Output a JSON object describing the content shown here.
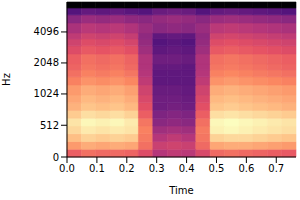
{
  "chart_data": {
    "type": "heatmap",
    "x_label": "Time",
    "y_label": "Hz",
    "log": "y",
    "xlim": [
      0,
      0.766
    ],
    "ylim": [
      0,
      8000
    ],
    "xticks": [
      {
        "value": 0,
        "label": "0.0"
      },
      0.1,
      0.2,
      0.3,
      0.4,
      0.5,
      0.6,
      0.7
    ],
    "yticks": [
      0,
      512,
      1024,
      2048,
      4096
    ],
    "x_edges": [
      0,
      0.048,
      0.096,
      0.144,
      0.192,
      0.239,
      0.287,
      0.335,
      0.383,
      0.431,
      0.479,
      0.527,
      0.575,
      0.622,
      0.67,
      0.718,
      0.766
    ],
    "y_edges": [
      0,
      125,
      250,
      375,
      500,
      625,
      750,
      875,
      1000,
      1250,
      1500,
      1750,
      2000,
      2500,
      3000,
      3500,
      4000,
      5000,
      6000,
      7000,
      8000
    ],
    "cells": [
      [
        -30,
        -27,
        -28,
        -28,
        -29,
        -34,
        -42,
        -40,
        -41,
        -35,
        -28,
        -27,
        -28,
        -29,
        -30,
        -31
      ],
      [
        -20,
        -17,
        -18,
        -17,
        -18,
        -27,
        -38,
        -37,
        -38,
        -28,
        -18,
        -17,
        -17,
        -18,
        -19,
        -20
      ],
      [
        -14,
        -11,
        -12,
        -11,
        -12,
        -25,
        -42,
        -40,
        -42,
        -26,
        -11,
        -10,
        -10,
        -11,
        -12,
        -13
      ],
      [
        -10,
        -7,
        -8,
        -7,
        -8,
        -24,
        -46,
        -45,
        -46,
        -25,
        -6,
        -5,
        -6,
        -7,
        -8,
        -9
      ],
      [
        -8,
        -5,
        -6,
        -5,
        -7,
        -26,
        -50,
        -49,
        -50,
        -27,
        -5,
        -4,
        -5,
        -6,
        -7,
        -8
      ],
      [
        -12,
        -9,
        -10,
        -9,
        -11,
        -30,
        -52,
        -51,
        -52,
        -30,
        -9,
        -8,
        -9,
        -10,
        -11,
        -12
      ],
      [
        -16,
        -13,
        -14,
        -13,
        -15,
        -33,
        -55,
        -54,
        -55,
        -33,
        -13,
        -12,
        -13,
        -14,
        -15,
        -16
      ],
      [
        -18,
        -15,
        -16,
        -15,
        -17,
        -35,
        -55,
        -55,
        -56,
        -35,
        -15,
        -14,
        -15,
        -16,
        -17,
        -18
      ],
      [
        -20,
        -17,
        -18,
        -17,
        -19,
        -37,
        -56,
        -56,
        -57,
        -37,
        -17,
        -16,
        -17,
        -18,
        -19,
        -20
      ],
      [
        -24,
        -21,
        -22,
        -21,
        -23,
        -40,
        -58,
        -58,
        -58,
        -40,
        -21,
        -20,
        -21,
        -22,
        -23,
        -24
      ],
      [
        -27,
        -24,
        -25,
        -24,
        -26,
        -42,
        -58,
        -58,
        -58,
        -42,
        -24,
        -23,
        -24,
        -25,
        -26,
        -27
      ],
      [
        -29,
        -26,
        -27,
        -26,
        -28,
        -43,
        -57,
        -57,
        -58,
        -43,
        -26,
        -25,
        -26,
        -27,
        -28,
        -29
      ],
      [
        -30,
        -27,
        -28,
        -27,
        -29,
        -43,
        -55,
        -55,
        -56,
        -43,
        -27,
        -26,
        -27,
        -28,
        -29,
        -30
      ],
      [
        -34,
        -31,
        -32,
        -31,
        -33,
        -46,
        -58,
        -57,
        -58,
        -46,
        -31,
        -30,
        -31,
        -32,
        -33,
        -34
      ],
      [
        -37,
        -34,
        -35,
        -34,
        -36,
        -48,
        -60,
        -59,
        -60,
        -48,
        -34,
        -33,
        -34,
        -35,
        -36,
        -37
      ],
      [
        -40,
        -37,
        -38,
        -37,
        -39,
        -49,
        -58,
        -57,
        -58,
        -49,
        -37,
        -36,
        -37,
        -38,
        -39,
        -40
      ],
      [
        -44,
        -41,
        -42,
        -41,
        -43,
        -47,
        -50,
        -49,
        -50,
        -47,
        -41,
        -40,
        -41,
        -42,
        -43,
        -44
      ],
      [
        -50,
        -47,
        -48,
        -47,
        -49,
        -50,
        -48,
        -47,
        -48,
        -50,
        -47,
        -46,
        -47,
        -48,
        -49,
        -50
      ],
      [
        -60,
        -57,
        -58,
        -57,
        -59,
        -60,
        -56,
        -55,
        -56,
        -60,
        -57,
        -56,
        -57,
        -58,
        -59,
        -60
      ],
      [
        -80,
        -80,
        -80,
        -80,
        -80,
        -80,
        -80,
        -80,
        -80,
        -80,
        -80,
        -80,
        -80,
        -80,
        -80,
        -80
      ]
    ]
  }
}
